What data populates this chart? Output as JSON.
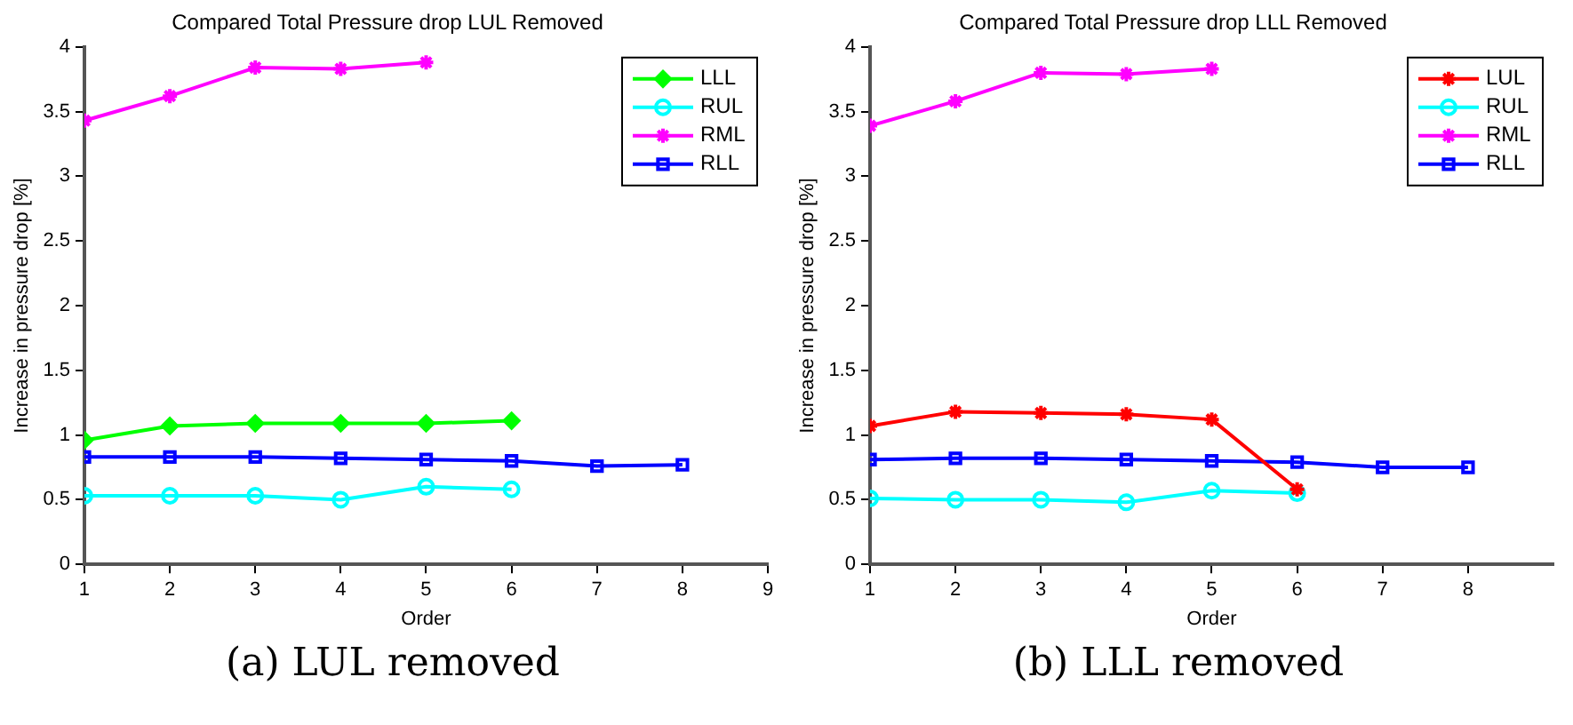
{
  "chart_data": [
    {
      "type": "line",
      "title": "Compared Total Pressure drop LUL Removed",
      "xlabel": "Order",
      "ylabel": "Increase in pressure drop [%]",
      "annotations": [
        "(a) LUL removed"
      ],
      "xlim": [
        1,
        9
      ],
      "xticks": [
        1,
        2,
        3,
        4,
        5,
        6,
        7,
        8,
        9
      ],
      "ylim": [
        0,
        4
      ],
      "yticks": [
        0,
        0.5,
        1,
        1.5,
        2,
        2.5,
        3,
        3.5,
        4
      ],
      "grid": false,
      "legend": "top right",
      "series": [
        {
          "name": "LLL",
          "color": "#00ff00",
          "marker": "diamond",
          "x": [
            1,
            2,
            3,
            4,
            5,
            6
          ],
          "values": [
            0.96,
            1.07,
            1.09,
            1.09,
            1.09,
            1.11
          ]
        },
        {
          "name": "RUL",
          "color": "#00ffff",
          "marker": "circle",
          "x": [
            1,
            2,
            3,
            4,
            5,
            6
          ],
          "values": [
            0.53,
            0.53,
            0.53,
            0.5,
            0.6,
            0.58
          ]
        },
        {
          "name": "RML",
          "color": "#ff00ff",
          "marker": "cross",
          "x": [
            1,
            2,
            3,
            4,
            5
          ],
          "values": [
            3.43,
            3.62,
            3.84,
            3.83,
            3.88
          ]
        },
        {
          "name": "RLL",
          "color": "#0000ff",
          "marker": "square",
          "x": [
            1,
            2,
            3,
            4,
            5,
            6,
            7,
            8
          ],
          "values": [
            0.83,
            0.83,
            0.83,
            0.82,
            0.81,
            0.8,
            0.76,
            0.77
          ]
        }
      ]
    },
    {
      "type": "line",
      "title": "Compared Total Pressure drop LLL Removed",
      "xlabel": "Order",
      "ylabel": "Increase in pressure drop [%]",
      "annotations": [
        "(b) LLL removed"
      ],
      "xlim": [
        1,
        9
      ],
      "xticks": [
        1,
        2,
        3,
        4,
        5,
        6,
        7,
        8
      ],
      "ylim": [
        0,
        4
      ],
      "yticks": [
        0,
        0.5,
        1,
        1.5,
        2,
        2.5,
        3,
        3.5,
        4
      ],
      "grid": false,
      "legend": "top right",
      "series": [
        {
          "name": "LUL",
          "color": "#ff0000",
          "marker": "cross",
          "x": [
            1,
            2,
            3,
            4,
            5,
            6
          ],
          "values": [
            1.07,
            1.18,
            1.17,
            1.16,
            1.12,
            0.58
          ]
        },
        {
          "name": "RUL",
          "color": "#00ffff",
          "marker": "circle",
          "x": [
            1,
            2,
            3,
            4,
            5,
            6
          ],
          "values": [
            0.51,
            0.5,
            0.5,
            0.48,
            0.57,
            0.55
          ]
        },
        {
          "name": "RML",
          "color": "#ff00ff",
          "marker": "cross",
          "x": [
            1,
            2,
            3,
            4,
            5
          ],
          "values": [
            3.39,
            3.58,
            3.8,
            3.79,
            3.83
          ]
        },
        {
          "name": "RLL",
          "color": "#0000ff",
          "marker": "square",
          "x": [
            1,
            2,
            3,
            4,
            5,
            6,
            7,
            8
          ],
          "values": [
            0.81,
            0.82,
            0.82,
            0.81,
            0.8,
            0.79,
            0.75,
            0.75
          ]
        }
      ]
    }
  ]
}
